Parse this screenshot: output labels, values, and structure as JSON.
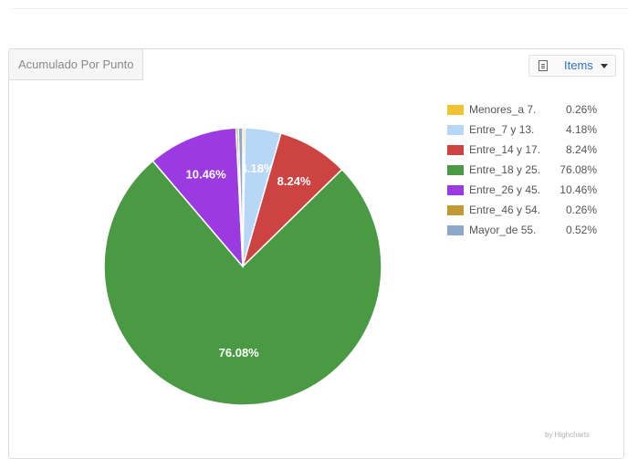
{
  "panel": {
    "tab_title": "Acumulado Por Punto",
    "items_button_label": "Items",
    "credits": "by Highcharts"
  },
  "colors": {
    "Menores_a 7.": "#f1c232",
    "Entre_7 y 13.": "#b6d7f5",
    "Entre_14 y 17.": "#cc4341",
    "Entre_18 y 25.": "#4a9a44",
    "Entre_26 y 45.": "#9b3ae0",
    "Entre_46 y 54.": "#c19a35",
    "Mayor_de 55.": "#8ca9c9"
  },
  "chart_data": {
    "type": "pie",
    "title": "",
    "legend_position": "right",
    "slices": [
      {
        "name": "Menores_a 7.",
        "value": 0.26,
        "label": "0.26%"
      },
      {
        "name": "Entre_7 y 13.",
        "value": 4.18,
        "label": "4.18%"
      },
      {
        "name": "Entre_14 y 17.",
        "value": 8.24,
        "label": "8.24%"
      },
      {
        "name": "Entre_18 y 25.",
        "value": 76.08,
        "label": "76.08%"
      },
      {
        "name": "Entre_26 y 45.",
        "value": 10.46,
        "label": "10.46%"
      },
      {
        "name": "Entre_46 y 54.",
        "value": 0.26,
        "label": "0.26%"
      },
      {
        "name": "Mayor_de 55.",
        "value": 0.52,
        "label": "0.52%"
      }
    ],
    "data_labels": [
      "4.18%",
      "8.24%",
      "76.08%",
      "10.46%"
    ]
  }
}
